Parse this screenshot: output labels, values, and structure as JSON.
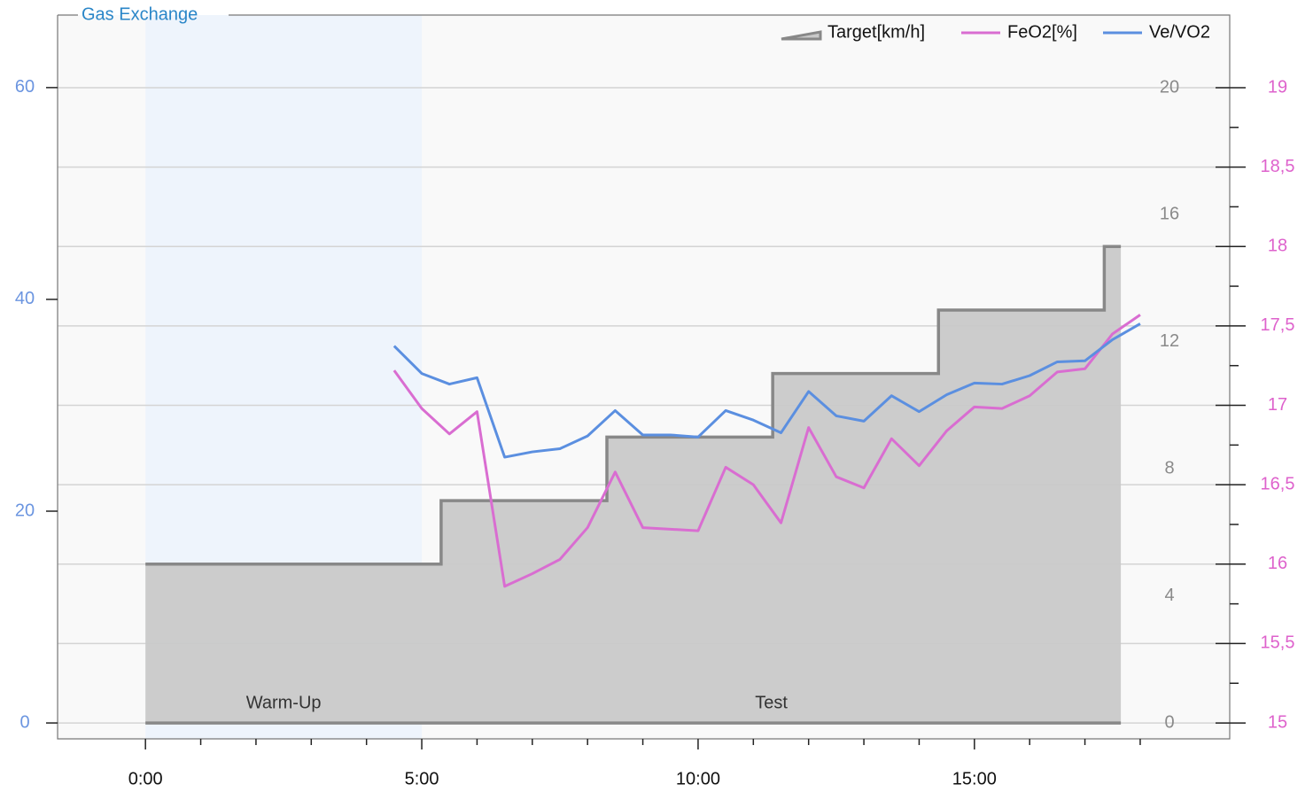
{
  "chart_data": {
    "type": "line",
    "title": "Gas Exchange",
    "xlim": [
      -1.59,
      19.62
    ],
    "xticks": [
      {
        "value": 0,
        "label": "0:00"
      },
      {
        "value": 5,
        "label": "5:00"
      },
      {
        "value": 10,
        "label": "10:00"
      },
      {
        "value": 15,
        "label": "15:00"
      }
    ],
    "xminor_ticks": [
      1,
      2,
      3,
      4,
      6,
      7,
      8,
      9,
      11,
      12,
      13,
      14,
      16,
      17,
      18
    ],
    "ylim": [
      -1.5,
      67.1
    ],
    "yticks": [
      0,
      20,
      40,
      60
    ],
    "y2lim": [
      -0.5,
      22.37
    ],
    "y2ticks": [
      0,
      4,
      8,
      12,
      16,
      20
    ],
    "y3lim": [
      14.9,
      19.474
    ],
    "y3ticks": [
      15,
      {
        "value": 15.5,
        "label": "15,5"
      },
      16,
      {
        "value": 16.5,
        "label": "16,5"
      },
      17,
      {
        "value": 17.5,
        "label": "17,5"
      },
      18,
      {
        "value": 18.5,
        "label": "18,5"
      },
      19
    ],
    "y3minor_ticks": [
      15.25,
      15.75,
      16.25,
      16.75,
      17.25,
      17.75,
      18.25,
      18.75
    ],
    "grid": "y3",
    "axis_colors": {
      "y": "#6b95e0",
      "y2": "#8a8a8a",
      "y3": "#de62cc"
    },
    "phases": [
      {
        "label": "Warm-Up",
        "start": 0,
        "end": 5,
        "color": "#eef4fc"
      },
      {
        "label": "Test",
        "start": 5,
        "end": 17.65,
        "color": "#f9f9f9"
      }
    ],
    "series": [
      {
        "name": "Target[km/h]",
        "color": "#888888",
        "fill": "#c9c9c9",
        "axis": "y2",
        "style": "area",
        "x": [
          0,
          5.35,
          5.35,
          8.35,
          8.35,
          11.35,
          11.35,
          14.35,
          14.35,
          17.35,
          17.35,
          17.65
        ],
        "values": [
          5,
          5,
          7,
          7,
          9,
          9,
          11,
          11,
          13,
          13,
          15,
          15
        ]
      },
      {
        "name": "FeO2[%]",
        "color": "#d96dd1",
        "axis": "y3",
        "style": "line",
        "x": [
          4.5,
          5,
          5.5,
          6,
          6.5,
          7,
          7.5,
          8,
          8.5,
          9,
          9.5,
          10,
          10.5,
          11,
          11.5,
          12,
          12.5,
          13,
          13.5,
          14,
          14.5,
          15,
          15.5,
          16,
          16.5,
          17,
          17.5,
          18
        ],
        "values": [
          17.22,
          16.98,
          16.82,
          16.96,
          15.86,
          15.94,
          16.03,
          16.23,
          16.58,
          16.23,
          16.22,
          16.21,
          16.61,
          16.5,
          16.26,
          16.86,
          16.55,
          16.48,
          16.79,
          16.62,
          16.84,
          16.99,
          16.98,
          17.06,
          17.21,
          17.23,
          17.45,
          17.57
        ]
      },
      {
        "name": "Ve/VO2",
        "color": "#5b8fe0",
        "axis": "y",
        "style": "line",
        "x": [
          4.5,
          5,
          5.5,
          6,
          6.5,
          7,
          7.5,
          8,
          8.5,
          9,
          9.5,
          10,
          10.5,
          11,
          11.5,
          12,
          12.5,
          13,
          13.5,
          14,
          14.5,
          15,
          15.5,
          16,
          16.5,
          17,
          17.5,
          18
        ],
        "values": [
          35.6,
          33.0,
          32.0,
          32.6,
          25.1,
          25.6,
          25.9,
          27.1,
          29.5,
          27.2,
          27.2,
          27.0,
          29.5,
          28.6,
          27.4,
          31.3,
          29.0,
          28.5,
          30.9,
          29.4,
          31.0,
          32.1,
          32.0,
          32.8,
          34.1,
          34.2,
          36.2,
          37.7
        ]
      }
    ]
  }
}
